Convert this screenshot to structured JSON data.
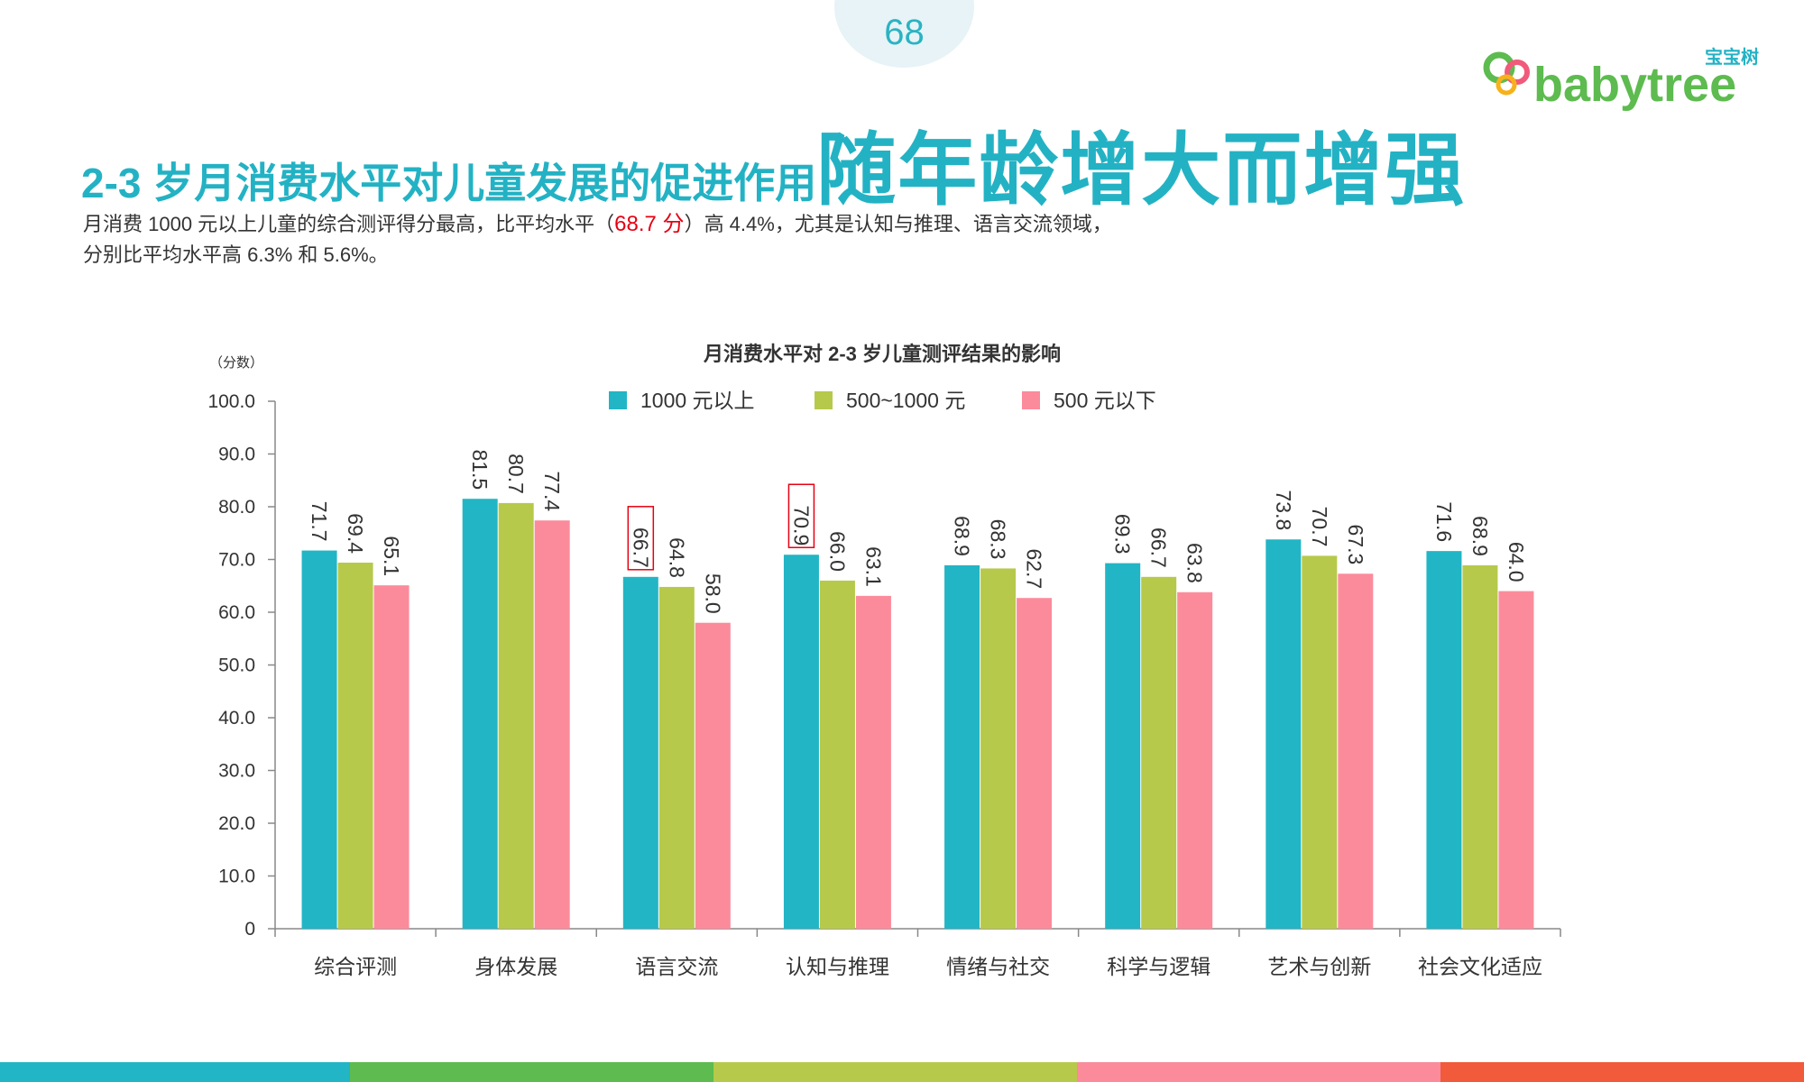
{
  "page_number": "68",
  "logo": {
    "brand_cn": "宝宝树",
    "brand_en": "babytree"
  },
  "title": {
    "part1": "2-3 岁月消费水平对儿童发展的促进作用",
    "part2": "随年龄增大而增强"
  },
  "description": {
    "line1_a": "月消费 1000 元以上儿童的综合测评得分最高，比平均水平（",
    "line1_highlight": "68.7 分",
    "line1_b": "）高 4.4%，尤其是认知与推理、语言交流领域，",
    "line2": "分别比平均水平高 6.3% 和 5.6%。"
  },
  "colors": {
    "accent": "#23b2c4",
    "series1": "#22b5c5",
    "series2": "#b7c94a",
    "series3": "#fb8b9b",
    "highlight": "#e60012"
  },
  "bottom_bar_colors": [
    "#22b5c5",
    "#5dbb4f",
    "#b7c94a",
    "#fb8b9b",
    "#f15a3a"
  ],
  "chart_data": {
    "type": "bar",
    "title": "月消费水平对 2-3 岁儿童测评结果的影响",
    "ylabel": "（分数）",
    "ylim": [
      0,
      100
    ],
    "yticks": [
      "0",
      "10.0",
      "20.0",
      "30.0",
      "40.0",
      "50.0",
      "60.0",
      "70.0",
      "80.0",
      "90.0",
      "100.0"
    ],
    "legend_position": "top-center",
    "categories": [
      "综合评测",
      "身体发展",
      "语言交流",
      "认知与推理",
      "情绪与社交",
      "科学与逻辑",
      "艺术与创新",
      "社会文化适应"
    ],
    "series": [
      {
        "name": "1000 元以上",
        "values": [
          71.7,
          81.5,
          66.7,
          70.9,
          68.9,
          69.3,
          73.8,
          71.6
        ]
      },
      {
        "name": "500~1000 元",
        "values": [
          69.4,
          80.7,
          64.8,
          66.0,
          68.3,
          66.7,
          70.7,
          68.9
        ]
      },
      {
        "name": "500 元以下",
        "values": [
          65.1,
          77.4,
          58.0,
          63.1,
          62.7,
          63.8,
          67.3,
          64.0
        ]
      }
    ],
    "boxed_labels": [
      [
        0,
        2
      ],
      [
        0,
        3
      ]
    ]
  }
}
